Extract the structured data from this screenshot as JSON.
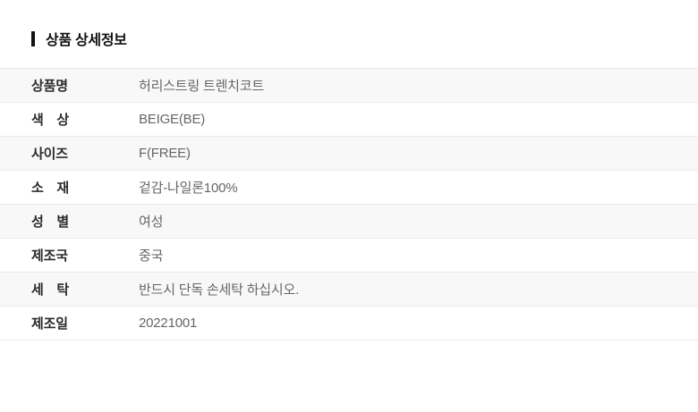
{
  "page": {
    "title": "상품 상세정보"
  },
  "table": {
    "rows": [
      {
        "label": "상품명",
        "value": "허리스트링 트렌치코트"
      },
      {
        "label": "색　상",
        "value": "BEIGE(BE)"
      },
      {
        "label": "사이즈",
        "value": "F(FREE)"
      },
      {
        "label": "소　재",
        "value": "겉감-나일론100%"
      },
      {
        "label": "성　별",
        "value": "여성"
      },
      {
        "label": "제조국",
        "value": "중국"
      },
      {
        "label": "세　탁",
        "value": "반드시 단독 손세탁 하십시오."
      },
      {
        "label": "제조일",
        "value": "20221001"
      }
    ]
  },
  "colors": {
    "background": "#ffffff",
    "title_text": "#111111",
    "title_bar_accent": "#111111",
    "label_text": "#2b2b2b",
    "value_text": "#666666",
    "row_shade": "#f8f8f8",
    "row_border": "#e9e9e9"
  }
}
